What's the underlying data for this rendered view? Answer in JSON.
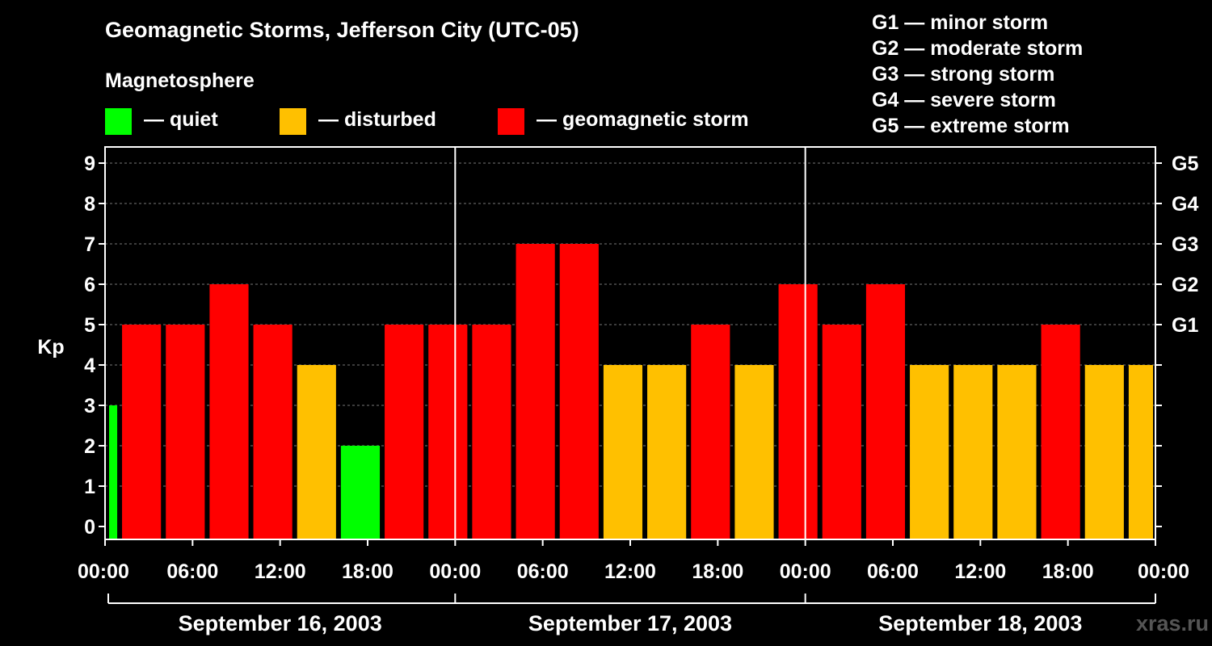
{
  "header": {
    "title": "Geomagnetic Storms, Jefferson City (UTC-05)",
    "subtitle": "Magnetosphere"
  },
  "legend": [
    {
      "label": "— quiet",
      "color": "#00ff00"
    },
    {
      "label": "— disturbed",
      "color": "#ffc000"
    },
    {
      "label": "— geomagnetic storm",
      "color": "#ff0000"
    }
  ],
  "g_scale_legend": [
    "G1 — minor storm",
    "G2 — moderate storm",
    "G3 — strong storm",
    "G4 — severe storm",
    "G5 — extreme storm"
  ],
  "watermark": "xras.ru",
  "colors": {
    "quiet": "#00ff00",
    "disturbed": "#ffc000",
    "storm": "#ff0000",
    "background": "#000000",
    "axis": "#ffffff"
  },
  "chart_data": {
    "type": "bar",
    "ylabel": "Kp",
    "ylim": [
      0,
      9
    ],
    "yticks": [
      "0",
      "1",
      "2",
      "3",
      "4",
      "5",
      "6",
      "7",
      "8",
      "9"
    ],
    "right_ticks": [
      {
        "kp": 5,
        "label": "G1"
      },
      {
        "kp": 6,
        "label": "G2"
      },
      {
        "kp": 7,
        "label": "G3"
      },
      {
        "kp": 8,
        "label": "G4"
      },
      {
        "kp": 9,
        "label": "G5"
      }
    ],
    "xtick_labels": [
      "00:00",
      "06:00",
      "12:00",
      "18:00",
      "00:00",
      "06:00",
      "12:00",
      "18:00",
      "00:00",
      "06:00",
      "12:00",
      "18:00",
      "00:00"
    ],
    "days": [
      "September 16, 2003",
      "September 17, 2003",
      "September 18, 2003"
    ],
    "grid": true,
    "bars": [
      {
        "start": "2003-09-16 00:00",
        "end": "2003-09-16 01:00",
        "kp": 3,
        "level": "quiet"
      },
      {
        "start": "2003-09-16 01:00",
        "end": "2003-09-16 04:00",
        "kp": 5,
        "level": "storm"
      },
      {
        "start": "2003-09-16 04:00",
        "end": "2003-09-16 07:00",
        "kp": 5,
        "level": "storm"
      },
      {
        "start": "2003-09-16 07:00",
        "end": "2003-09-16 10:00",
        "kp": 6,
        "level": "storm"
      },
      {
        "start": "2003-09-16 10:00",
        "end": "2003-09-16 13:00",
        "kp": 5,
        "level": "storm"
      },
      {
        "start": "2003-09-16 13:00",
        "end": "2003-09-16 16:00",
        "kp": 4,
        "level": "disturbed"
      },
      {
        "start": "2003-09-16 16:00",
        "end": "2003-09-16 19:00",
        "kp": 2,
        "level": "quiet"
      },
      {
        "start": "2003-09-16 19:00",
        "end": "2003-09-16 22:00",
        "kp": 5,
        "level": "storm"
      },
      {
        "start": "2003-09-16 22:00",
        "end": "2003-09-17 01:00",
        "kp": 5,
        "level": "storm"
      },
      {
        "start": "2003-09-17 01:00",
        "end": "2003-09-17 04:00",
        "kp": 5,
        "level": "storm"
      },
      {
        "start": "2003-09-17 04:00",
        "end": "2003-09-17 07:00",
        "kp": 7,
        "level": "storm"
      },
      {
        "start": "2003-09-17 07:00",
        "end": "2003-09-17 10:00",
        "kp": 7,
        "level": "storm"
      },
      {
        "start": "2003-09-17 10:00",
        "end": "2003-09-17 13:00",
        "kp": 4,
        "level": "disturbed"
      },
      {
        "start": "2003-09-17 13:00",
        "end": "2003-09-17 16:00",
        "kp": 4,
        "level": "disturbed"
      },
      {
        "start": "2003-09-17 16:00",
        "end": "2003-09-17 19:00",
        "kp": 5,
        "level": "storm"
      },
      {
        "start": "2003-09-17 19:00",
        "end": "2003-09-17 22:00",
        "kp": 4,
        "level": "disturbed"
      },
      {
        "start": "2003-09-17 22:00",
        "end": "2003-09-18 01:00",
        "kp": 6,
        "level": "storm"
      },
      {
        "start": "2003-09-18 01:00",
        "end": "2003-09-18 04:00",
        "kp": 5,
        "level": "storm"
      },
      {
        "start": "2003-09-18 04:00",
        "end": "2003-09-18 07:00",
        "kp": 6,
        "level": "storm"
      },
      {
        "start": "2003-09-18 07:00",
        "end": "2003-09-18 10:00",
        "kp": 4,
        "level": "disturbed"
      },
      {
        "start": "2003-09-18 10:00",
        "end": "2003-09-18 13:00",
        "kp": 4,
        "level": "disturbed"
      },
      {
        "start": "2003-09-18 13:00",
        "end": "2003-09-18 16:00",
        "kp": 4,
        "level": "disturbed"
      },
      {
        "start": "2003-09-18 16:00",
        "end": "2003-09-18 19:00",
        "kp": 5,
        "level": "storm"
      },
      {
        "start": "2003-09-18 19:00",
        "end": "2003-09-18 22:00",
        "kp": 4,
        "level": "disturbed"
      },
      {
        "start": "2003-09-18 22:00",
        "end": "2003-09-19 00:00",
        "kp": 4,
        "level": "disturbed"
      }
    ]
  }
}
